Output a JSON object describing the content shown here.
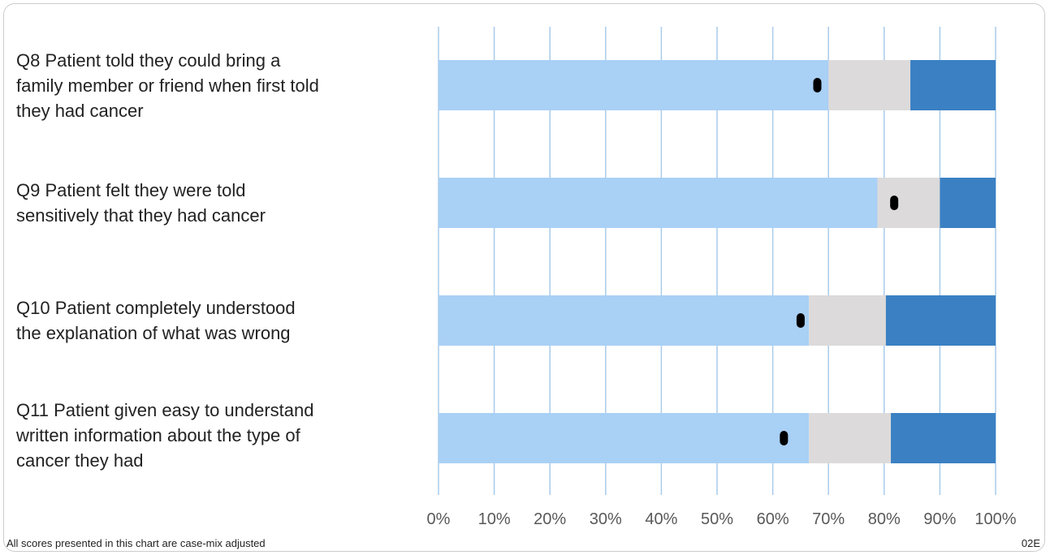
{
  "chart_data": {
    "type": "bar",
    "orientation": "horizontal",
    "stacked": true,
    "categories": [
      "Q8 Patient told they could bring a family member or friend when first told they had cancer",
      "Q9 Patient felt they were told sensitively that they had cancer",
      "Q10 Patient completely understood the explanation of what was wrong",
      "Q11 Patient given easy to understand written information about the type of cancer they had"
    ],
    "category_lines": [
      [
        "Q8 Patient told they could bring a",
        "family member or friend when first told",
        "they had cancer"
      ],
      [
        "Q9 Patient felt they were told",
        "sensitively that they had cancer"
      ],
      [
        "Q10 Patient completely understood",
        "the explanation of what was wrong"
      ],
      [
        "Q11 Patient given easy to understand",
        "written information about the type of",
        "cancer they had"
      ]
    ],
    "series": [
      {
        "color": "#a9d0f5",
        "values": [
          70,
          78.8,
          66.5,
          66.5
        ]
      },
      {
        "color": "#dcdada",
        "values": [
          14.7,
          11.2,
          13.8,
          14.7
        ]
      },
      {
        "color": "#3a80c3",
        "values": [
          15.3,
          10,
          19.7,
          18.8
        ]
      }
    ],
    "markers": {
      "color": "#000000",
      "values": [
        68,
        81.8,
        65,
        62
      ]
    },
    "x_ticks": [
      "0%",
      "10%",
      "20%",
      "30%",
      "40%",
      "50%",
      "60%",
      "70%",
      "80%",
      "90%",
      "100%"
    ],
    "xlim": [
      0,
      100
    ],
    "grid": true,
    "gridline_color": "#a9cbea"
  },
  "footnote": "All scores presented in this chart are case-mix adjusted",
  "code": "02E"
}
